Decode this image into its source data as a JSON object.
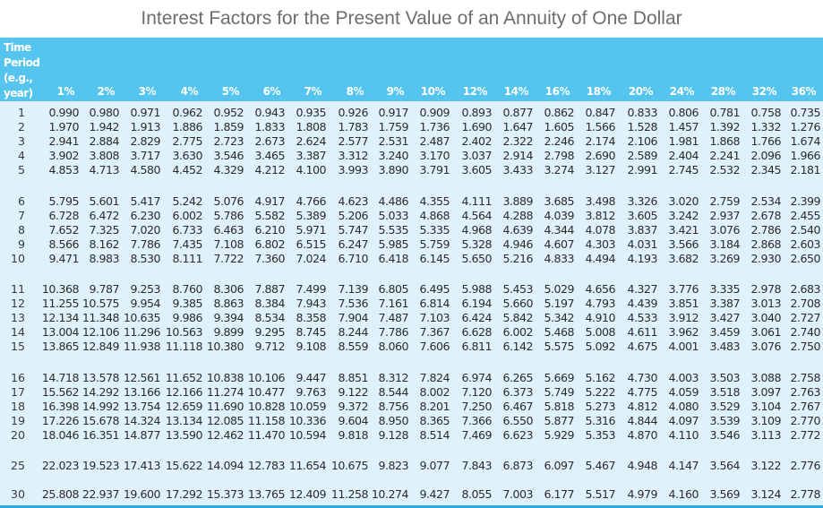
{
  "title": "Interest Factors for the Present Value of an Annuity of One Dollar",
  "colors": {
    "header_bg": "#55c5ef",
    "body_bg": "#dff2fc",
    "title_text": "#6d6d6d",
    "bottom_rule": "#33a9d6"
  },
  "header": {
    "period_label_lines": [
      "Time",
      "Period",
      "(e.g.,",
      "year)"
    ],
    "rates": [
      "1%",
      "2%",
      "3%",
      "4%",
      "5%",
      "6%",
      "7%",
      "8%",
      "9%",
      "10%",
      "12%",
      "14%",
      "16%",
      "18%",
      "20%",
      "24%",
      "28%",
      "32%",
      "36%"
    ]
  },
  "rows": [
    {
      "period": "1",
      "values": [
        "0.990",
        "0.980",
        "0.971",
        "0.962",
        "0.952",
        "0.943",
        "0.935",
        "0.926",
        "0.917",
        "0.909",
        "0.893",
        "0.877",
        "0.862",
        "0.847",
        "0.833",
        "0.806",
        "0.781",
        "0.758",
        "0.735"
      ]
    },
    {
      "period": "2",
      "values": [
        "1.970",
        "1.942",
        "1.913",
        "1.886",
        "1.859",
        "1.833",
        "1.808",
        "1.783",
        "1.759",
        "1.736",
        "1.690",
        "1.647",
        "1.605",
        "1.566",
        "1.528",
        "1.457",
        "1.392",
        "1.332",
        "1.276"
      ]
    },
    {
      "period": "3",
      "values": [
        "2.941",
        "2.884",
        "2.829",
        "2.775",
        "2.723",
        "2.673",
        "2.624",
        "2.577",
        "2.531",
        "2.487",
        "2.402",
        "2.322",
        "2.246",
        "2.174",
        "2.106",
        "1.981",
        "1.868",
        "1.766",
        "1.674"
      ]
    },
    {
      "period": "4",
      "values": [
        "3.902",
        "3.808",
        "3.717",
        "3.630",
        "3.546",
        "3.465",
        "3.387",
        "3.312",
        "3.240",
        "3.170",
        "3.037",
        "2.914",
        "2.798",
        "2.690",
        "2.589",
        "2.404",
        "2.241",
        "2.096",
        "1.966"
      ]
    },
    {
      "period": "5",
      "values": [
        "4.853",
        "4.713",
        "4.580",
        "4.452",
        "4.329",
        "4.212",
        "4.100",
        "3.993",
        "3.890",
        "3.791",
        "3.605",
        "3.433",
        "3.274",
        "3.127",
        "2.991",
        "2.745",
        "2.532",
        "2.345",
        "2.181"
      ]
    },
    {
      "period": "6",
      "values": [
        "5.795",
        "5.601",
        "5.417",
        "5.242",
        "5.076",
        "4.917",
        "4.766",
        "4.623",
        "4.486",
        "4.355",
        "4.111",
        "3.889",
        "3.685",
        "3.498",
        "3.326",
        "3.020",
        "2.759",
        "2.534",
        "2.399"
      ]
    },
    {
      "period": "7",
      "values": [
        "6.728",
        "6.472",
        "6.230",
        "6.002",
        "5.786",
        "5.582",
        "5.389",
        "5.206",
        "5.033",
        "4.868",
        "4.564",
        "4.288",
        "4.039",
        "3.812",
        "3.605",
        "3.242",
        "2.937",
        "2.678",
        "2.455"
      ]
    },
    {
      "period": "8",
      "values": [
        "7.652",
        "7.325",
        "7.020",
        "6.733",
        "6.463",
        "6.210",
        "5.971",
        "5.747",
        "5.535",
        "5.335",
        "4.968",
        "4.639",
        "4.344",
        "4.078",
        "3.837",
        "3.421",
        "3.076",
        "2.786",
        "2.540"
      ]
    },
    {
      "period": "9",
      "values": [
        "8.566",
        "8.162",
        "7.786",
        "7.435",
        "7.108",
        "6.802",
        "6.515",
        "6.247",
        "5.985",
        "5.759",
        "5.328",
        "4.946",
        "4.607",
        "4.303",
        "4.031",
        "3.566",
        "3.184",
        "2.868",
        "2.603"
      ]
    },
    {
      "period": "10",
      "values": [
        "9.471",
        "8.983",
        "8.530",
        "8.111",
        "7.722",
        "7.360",
        "7.024",
        "6.710",
        "6.418",
        "6.145",
        "5.650",
        "5.216",
        "4.833",
        "4.494",
        "4.193",
        "3.682",
        "3.269",
        "2.930",
        "2.650"
      ]
    },
    {
      "period": "11",
      "values": [
        "10.368",
        "9.787",
        "9.253",
        "8.760",
        "8.306",
        "7.887",
        "7.499",
        "7.139",
        "6.805",
        "6.495",
        "5.988",
        "5.453",
        "5.029",
        "4.656",
        "4.327",
        "3.776",
        "3.335",
        "2.978",
        "2.683"
      ]
    },
    {
      "period": "12",
      "values": [
        "11.255",
        "10.575",
        "9.954",
        "9.385",
        "8.863",
        "8.384",
        "7.943",
        "7.536",
        "7.161",
        "6.814",
        "6.194",
        "5.660",
        "5.197",
        "4.793",
        "4.439",
        "3.851",
        "3.387",
        "3.013",
        "2.708"
      ]
    },
    {
      "period": "13",
      "values": [
        "12.134",
        "11.348",
        "10.635",
        "9.986",
        "9.394",
        "8.534",
        "8.358",
        "7.904",
        "7.487",
        "7.103",
        "6.424",
        "5.842",
        "5.342",
        "4.910",
        "4.533",
        "3.912",
        "3.427",
        "3.040",
        "2.727"
      ]
    },
    {
      "period": "14",
      "values": [
        "13.004",
        "12.106",
        "11.296",
        "10.563",
        "9.899",
        "9.295",
        "8.745",
        "8.244",
        "7.786",
        "7.367",
        "6.628",
        "6.002",
        "5.468",
        "5.008",
        "4.611",
        "3.962",
        "3.459",
        "3.061",
        "2.740"
      ]
    },
    {
      "period": "15",
      "values": [
        "13.865",
        "12.849",
        "11.938",
        "11.118",
        "10.380",
        "9.712",
        "9.108",
        "8.559",
        "8.060",
        "7.606",
        "6.811",
        "6.142",
        "5.575",
        "5.092",
        "4.675",
        "4.001",
        "3.483",
        "3.076",
        "2.750"
      ]
    },
    {
      "period": "16",
      "values": [
        "14.718",
        "13.578",
        "12.561",
        "11.652",
        "10.838",
        "10.106",
        "9.447",
        "8.851",
        "8.312",
        "7.824",
        "6.974",
        "6.265",
        "5.669",
        "5.162",
        "4.730",
        "4.003",
        "3.503",
        "3.088",
        "2.758"
      ]
    },
    {
      "period": "17",
      "values": [
        "15.562",
        "14.292",
        "13.166",
        "12.166",
        "11.274",
        "10.477",
        "9.763",
        "9.122",
        "8.544",
        "8.002",
        "7.120",
        "6.373",
        "5.749",
        "5.222",
        "4.775",
        "4.059",
        "3.518",
        "3.097",
        "2.763"
      ]
    },
    {
      "period": "18",
      "values": [
        "16.398",
        "14.992",
        "13.754",
        "12.659",
        "11.690",
        "10.828",
        "10.059",
        "9.372",
        "8.756",
        "8.201",
        "7.250",
        "6.467",
        "5.818",
        "5.273",
        "4.812",
        "4.080",
        "3.529",
        "3.104",
        "2.767"
      ]
    },
    {
      "period": "19",
      "values": [
        "17.226",
        "15.678",
        "14.324",
        "13.134",
        "12.085",
        "11.158",
        "10.336",
        "9.604",
        "8.950",
        "8.365",
        "7.366",
        "6.550",
        "5.877",
        "5.316",
        "4.844",
        "4.097",
        "3.539",
        "3.109",
        "2.770"
      ]
    },
    {
      "period": "20",
      "values": [
        "18.046",
        "16.351",
        "14.877",
        "13.590",
        "12.462",
        "11.470",
        "10.594",
        "9.818",
        "9.128",
        "8.514",
        "7.469",
        "6.623",
        "5.929",
        "5.353",
        "4.870",
        "4.110",
        "3.546",
        "3.113",
        "2.772"
      ]
    },
    {
      "period": "25",
      "values": [
        "22.023",
        "19.523",
        "17.413",
        "15.622",
        "14.094",
        "12.783",
        "11.654",
        "10.675",
        "9.823",
        "9.077",
        "7.843",
        "6.873",
        "6.097",
        "5.467",
        "4.948",
        "4.147",
        "3.564",
        "3.122",
        "2.776"
      ]
    },
    {
      "period": "30",
      "values": [
        "25.808",
        "22.937",
        "19.600",
        "17.292",
        "15.373",
        "13.765",
        "12.409",
        "11.258",
        "10.274",
        "9.427",
        "8.055",
        "7.003",
        "6.177",
        "5.517",
        "4.979",
        "4.160",
        "3.569",
        "3.124",
        "2.778"
      ]
    }
  ]
}
